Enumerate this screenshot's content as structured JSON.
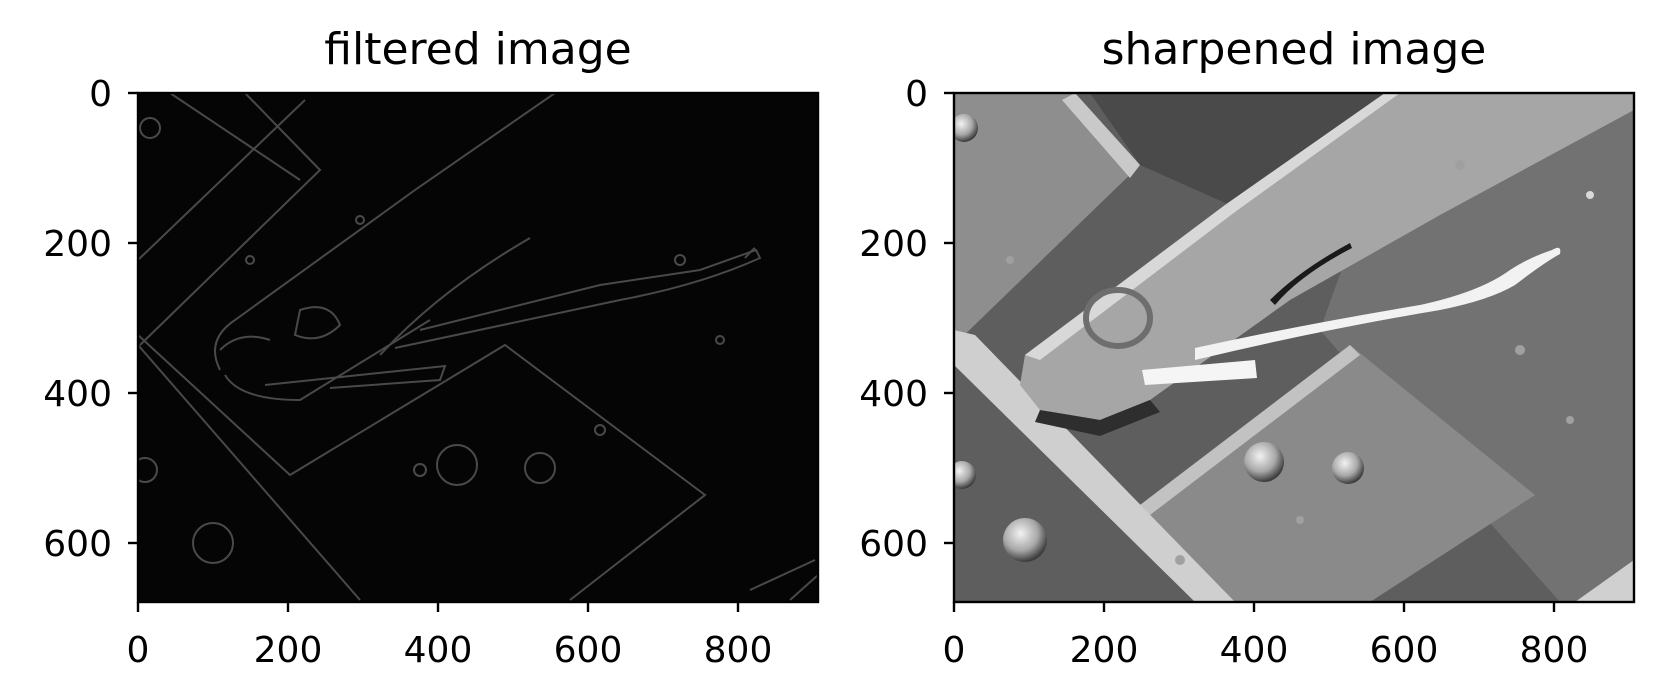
{
  "panels": [
    {
      "title": "filtered image",
      "xticks": [
        "0",
        "200",
        "400",
        "600",
        "800"
      ],
      "yticks": [
        "0",
        "200",
        "400",
        "600"
      ],
      "background": "#050505",
      "stroke": "#5a5a5a"
    },
    {
      "title": "sharpened image",
      "xticks": [
        "0",
        "200",
        "400",
        "600",
        "800"
      ],
      "yticks": [
        "0",
        "200",
        "400",
        "600"
      ],
      "background": "#5e5e5e",
      "stroke": "#e8e8e8"
    }
  ]
}
